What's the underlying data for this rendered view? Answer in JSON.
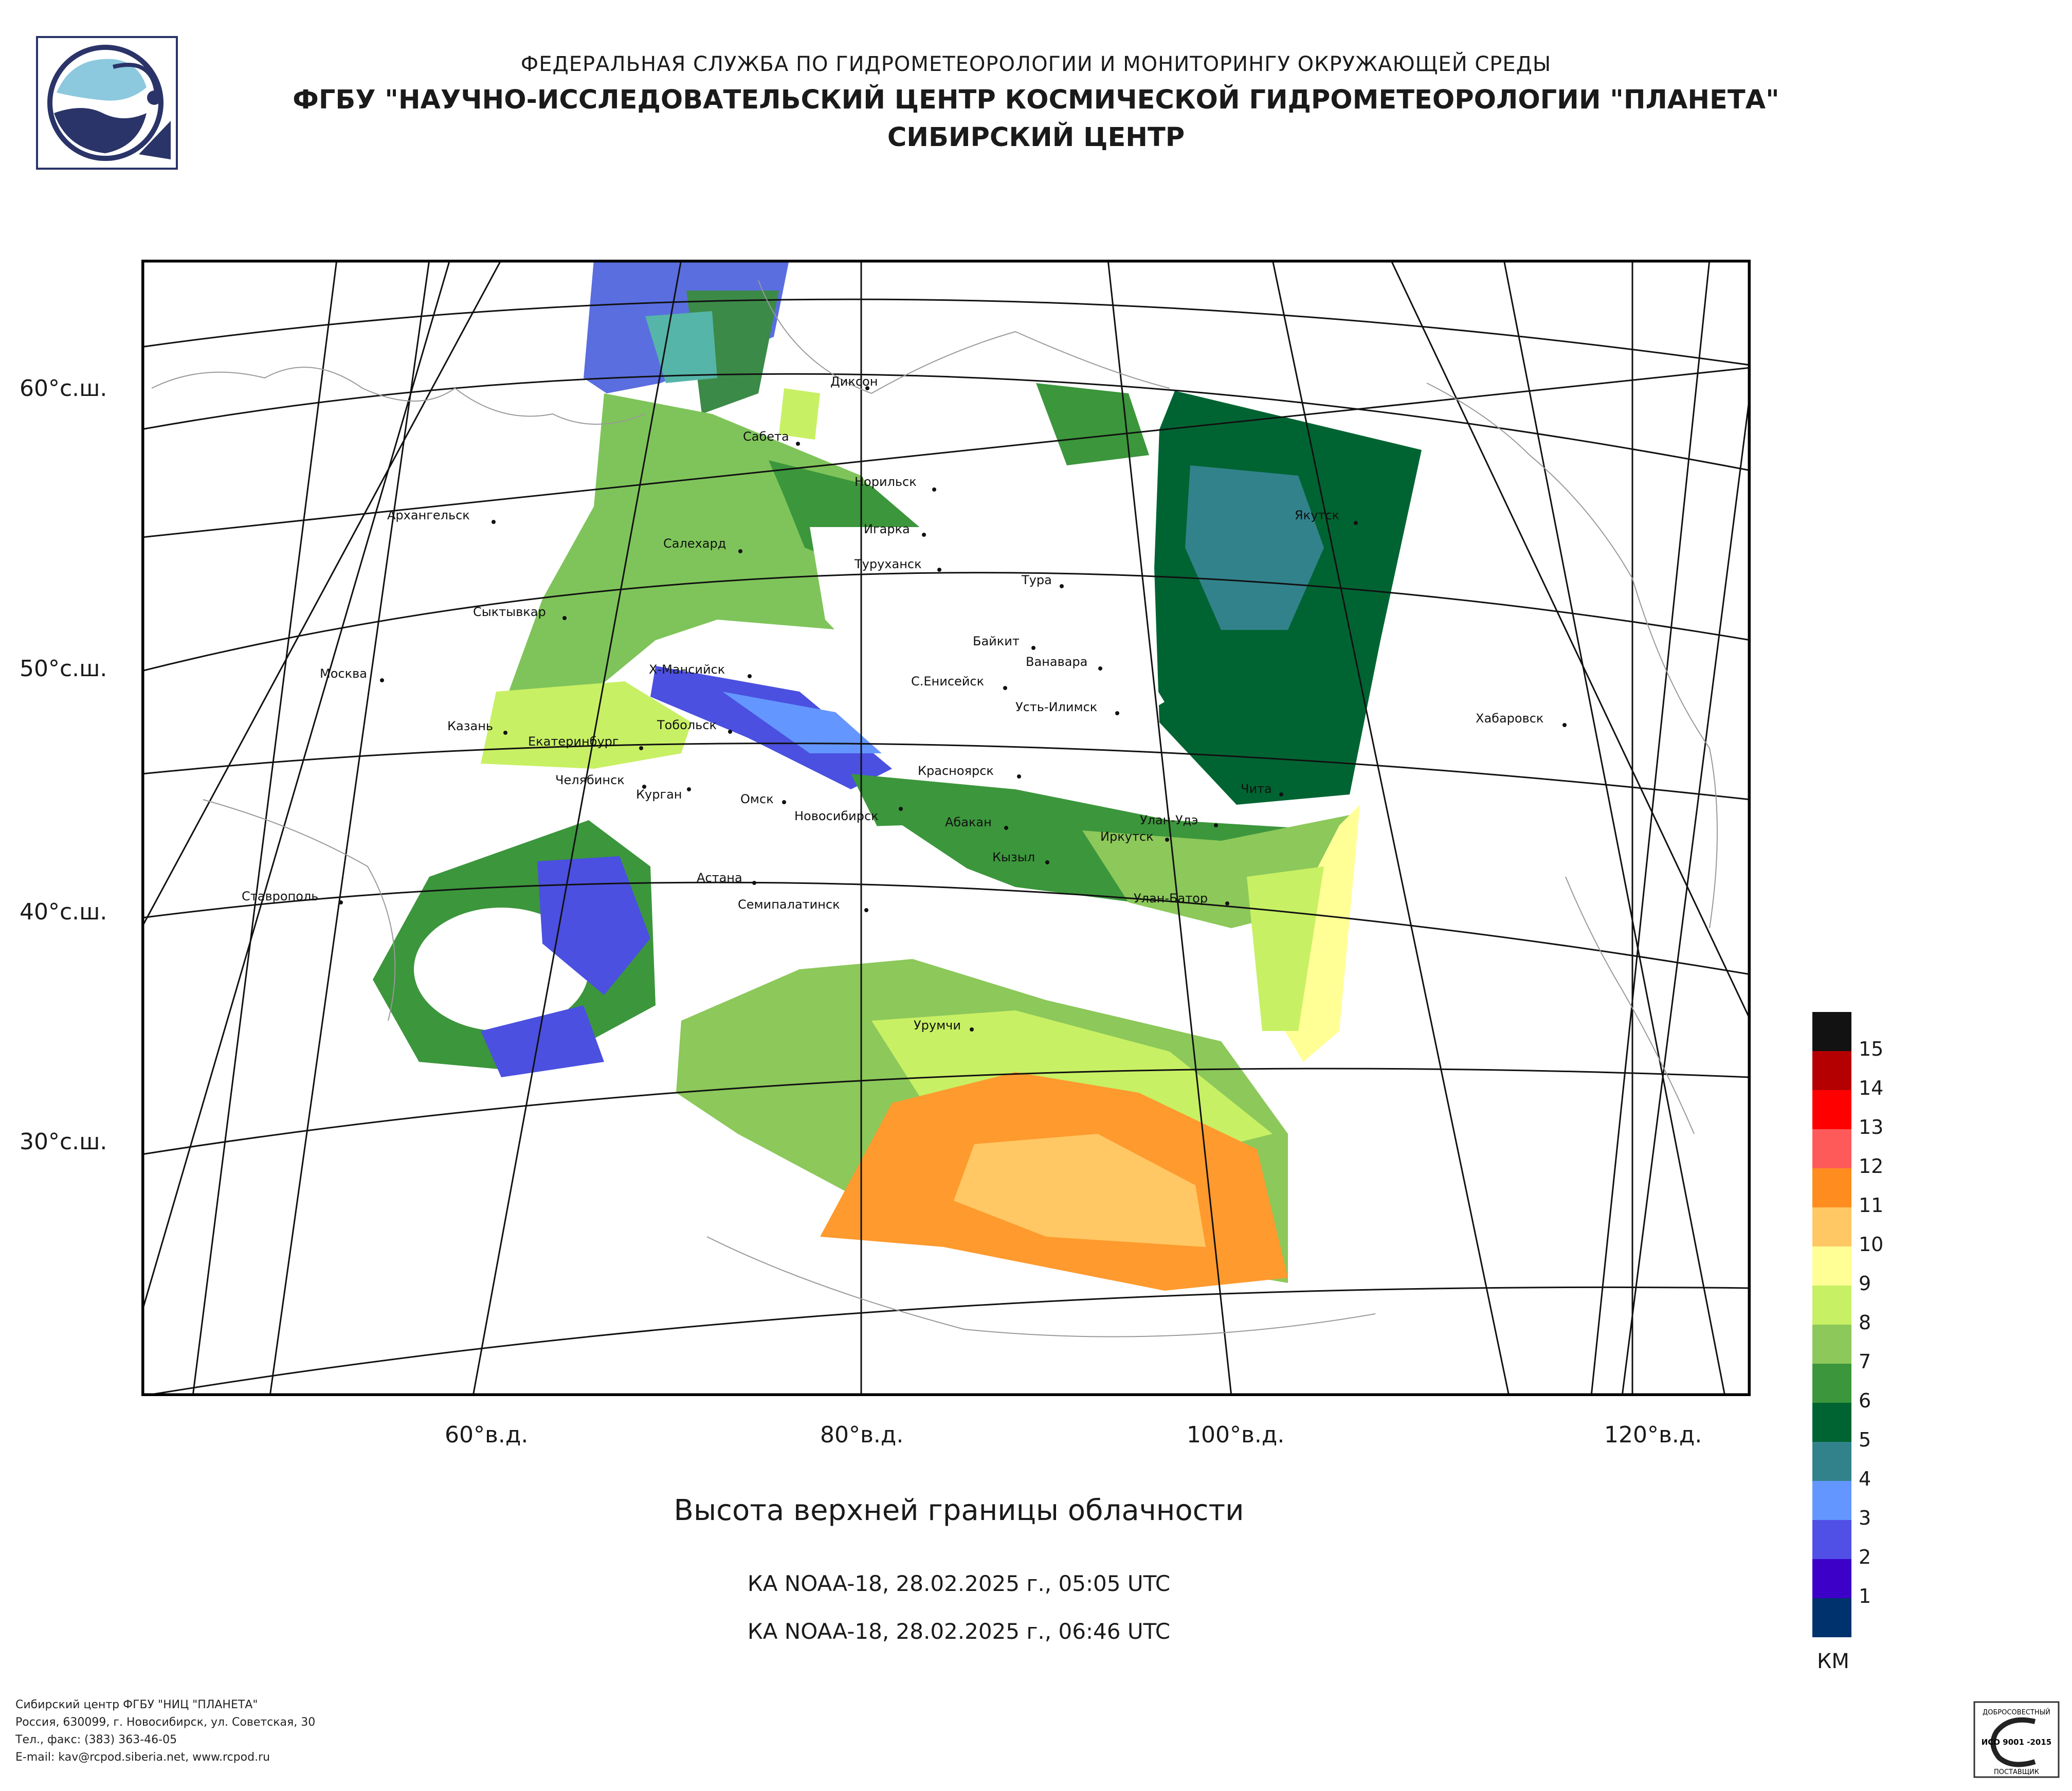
{
  "header": {
    "line1": "ФЕДЕРАЛЬНАЯ СЛУЖБА ПО ГИДРОМЕТЕОРОЛОГИИ И МОНИТОРИНГУ ОКРУЖАЮЩЕЙ СРЕДЫ",
    "line2": "ФГБУ \"НАУЧНО-ИССЛЕДОВАТЕЛЬСКИЙ ЦЕНТР КОСМИЧЕСКОЙ ГИДРОМЕТЕОРОЛОГИИ \"ПЛАНЕТА\"",
    "line3": "СИБИРСКИЙ ЦЕНТР"
  },
  "map": {
    "lat_labels": [
      "60°с.ш.",
      "50°с.ш.",
      "40°с.ш.",
      "30°с.ш."
    ],
    "lon_labels": [
      "60°в.д.",
      "80°в.д.",
      "100°в.д.",
      "120°в.д."
    ],
    "cities": [
      "Диксон",
      "Сабета",
      "Норильск",
      "Игарка",
      "Туруханск",
      "Салехард",
      "Архангельск",
      "Сыктывкар",
      "Москва",
      "Казань",
      "Екатеринбург",
      "Челябинск",
      "Курган",
      "Тобольск",
      "Х-Мансийск",
      "Омск",
      "Новосибирск",
      "Красноярск",
      "Абакан",
      "Кызыл",
      "Иркутск",
      "Улан-Удэ",
      "Чита",
      "Улан-Батор",
      "Семипалатинск",
      "Астана",
      "Ставрополь",
      "Урумчи",
      "Тура",
      "Байкит",
      "Ванавара",
      "С.Енисейск",
      "Усть-Илимск",
      "Якутск",
      "Хабаровск"
    ]
  },
  "title": "Высота верхней границы облачности",
  "passes": [
    "КА NOAA-18, 28.02.2025 г., 05:05 UTC",
    "КА NOAA-18, 28.02.2025 г., 06:46 UTC"
  ],
  "legend": {
    "unit": "КМ",
    "levels": [
      "15",
      "14",
      "13",
      "12",
      "11",
      "10",
      "9",
      "8",
      "7",
      "6",
      "5",
      "4",
      "3",
      "2",
      "1"
    ],
    "colors": [
      "#121212",
      "#b40000",
      "#ff0000",
      "#ff5a5a",
      "#ff8c1e",
      "#ffc864",
      "#ffff96",
      "#c8f064",
      "#8cc85a",
      "#3c963c",
      "#006432",
      "#32828c",
      "#6496ff",
      "#5050e6",
      "#3c00c8",
      "#00326e"
    ]
  },
  "footer": {
    "line1": "Сибирский центр ФГБУ \"НИЦ \"ПЛАНЕТА\"",
    "line2": "Россия, 630099, г. Новосибирск, ул. Советская, 30",
    "line3": "Тел., факс: (383) 363-46-05",
    "line4": "E-mail: kav@rcpod.siberia.net, www.rcpod.ru",
    "iso_label": "ИСО 9001 -2015",
    "iso_top": "ДОБРОСОВЕСТНЫЙ",
    "iso_bottom": "ПОСТАВЩИК"
  }
}
